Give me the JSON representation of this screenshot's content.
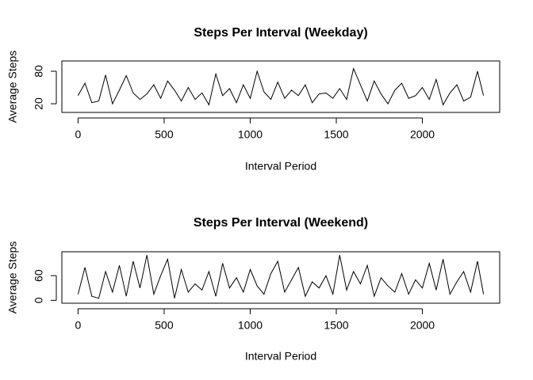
{
  "chart_data": [
    {
      "type": "line",
      "title": "Steps Per Interval (Weekday)",
      "xlabel": "Interval Period",
      "ylabel": "Average Steps",
      "x": [
        0,
        40,
        80,
        120,
        160,
        200,
        240,
        280,
        320,
        360,
        400,
        440,
        480,
        520,
        560,
        600,
        640,
        680,
        720,
        760,
        800,
        840,
        880,
        920,
        960,
        1000,
        1040,
        1080,
        1120,
        1160,
        1200,
        1240,
        1280,
        1320,
        1360,
        1400,
        1440,
        1480,
        1520,
        1560,
        1600,
        1640,
        1680,
        1720,
        1760,
        1800,
        1840,
        1880,
        1920,
        1960,
        2000,
        2040,
        2080,
        2120,
        2160,
        2200,
        2240,
        2280,
        2320,
        2355
      ],
      "series": [
        {
          "name": "Weekday",
          "color": "#000000",
          "values": [
            35,
            58,
            22,
            25,
            73,
            20,
            45,
            72,
            40,
            28,
            38,
            55,
            30,
            62,
            45,
            25,
            50,
            28,
            40,
            18,
            75,
            35,
            48,
            22,
            55,
            30,
            80,
            42,
            28,
            60,
            30,
            45,
            35,
            55,
            22,
            38,
            40,
            30,
            48,
            28,
            85,
            55,
            25,
            62,
            38,
            20,
            45,
            58,
            30,
            35,
            50,
            28,
            65,
            18,
            40,
            55,
            25,
            32,
            80,
            35
          ]
        }
      ],
      "xlim": [
        -94,
        2449
      ],
      "xticks": [
        0,
        500,
        1000,
        1500,
        2000
      ],
      "ylim": [
        4,
        99
      ],
      "yticks": [
        20,
        80
      ]
    },
    {
      "type": "line",
      "title": "Steps Per Interval (Weekend)",
      "xlabel": "Interval Period",
      "ylabel": "Average Steps",
      "x": [
        0,
        40,
        80,
        120,
        160,
        200,
        240,
        280,
        320,
        360,
        400,
        440,
        480,
        520,
        560,
        600,
        640,
        680,
        720,
        760,
        800,
        840,
        880,
        920,
        960,
        1000,
        1040,
        1080,
        1120,
        1160,
        1200,
        1240,
        1280,
        1320,
        1360,
        1400,
        1440,
        1480,
        1520,
        1560,
        1600,
        1640,
        1680,
        1720,
        1760,
        1800,
        1840,
        1880,
        1920,
        1960,
        2000,
        2040,
        2080,
        2120,
        2160,
        2200,
        2240,
        2280,
        2320,
        2355
      ],
      "series": [
        {
          "name": "Weekend",
          "color": "#000000",
          "values": [
            15,
            80,
            10,
            5,
            70,
            20,
            85,
            10,
            95,
            30,
            110,
            15,
            60,
            100,
            5,
            75,
            20,
            40,
            25,
            70,
            10,
            90,
            30,
            55,
            20,
            75,
            35,
            15,
            65,
            95,
            20,
            50,
            80,
            10,
            45,
            30,
            60,
            15,
            110,
            25,
            70,
            40,
            85,
            10,
            55,
            35,
            20,
            65,
            15,
            50,
            30,
            90,
            25,
            100,
            15,
            45,
            70,
            20,
            95,
            15
          ]
        }
      ],
      "xlim": [
        -94,
        2449
      ],
      "xticks": [
        0,
        500,
        1000,
        1500,
        2000
      ],
      "ylim": [
        -7,
        118
      ],
      "yticks": [
        0,
        60
      ]
    }
  ]
}
